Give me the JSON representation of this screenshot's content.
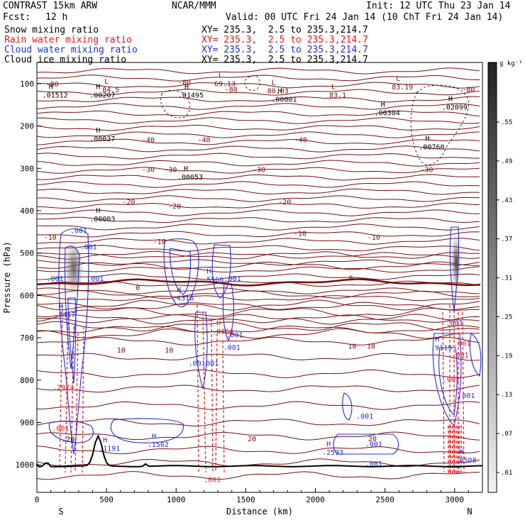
{
  "header": {
    "model": "CONTRAST 15km ARW",
    "org": "NCAR/MMM",
    "init": "Init: 12 UTC Thu 23 Jan 14",
    "fcst_label": "Fcst:",
    "fcst_value": "12 h",
    "valid": "Valid: 00 UTC Fri 24 Jan 14 (10 ChT Fri 24 Jan 14)"
  },
  "legend": [
    {
      "name": "Snow mixing ratio",
      "xy": "XY= 235.3,  2.5 to 235.3,214.7",
      "color": "#000000"
    },
    {
      "name": "Rain water mixing ratio",
      "xy": "XY= 235.3,  2.5 to 235.3,214.7",
      "color": "#e8161b"
    },
    {
      "name": "Cloud water mixing ratio",
      "xy": "XY= 235.3,  2.5 to 235.3,214.7",
      "color": "#1f2fd6"
    },
    {
      "name": "Cloud ice mixing ratio",
      "xy": "XY= 235.3,  2.5 to 235.3,214.7",
      "color": "#000000"
    }
  ],
  "chart_data": {
    "type": "contour-cross-section",
    "title": "CONTRAST 15km ARW cross section",
    "xlabel": "Distance (km)",
    "ylabel": "Pressure (hPa)",
    "xlim": [
      0,
      3200
    ],
    "ylim": [
      50,
      1065
    ],
    "x_ticks": [
      0,
      500,
      1000,
      1500,
      2000,
      2500,
      3000
    ],
    "y_ticks": [
      100,
      200,
      300,
      400,
      500,
      600,
      700,
      800,
      900,
      1000
    ],
    "end_labels": {
      "left": "S",
      "right": "N"
    },
    "colorbar": {
      "unit": "g kg⁻¹",
      "ticks": [
        ".01",
        ".07",
        ".13",
        ".19",
        ".25",
        ".31",
        ".37",
        ".43",
        ".49",
        ".55"
      ],
      "color_dark": "#222222",
      "color_light": "#f2f2f2"
    },
    "temperature_contours": [
      {
        "label": "-80",
        "x": 110,
        "p": 100
      },
      {
        "label": "-80",
        "x": 1060,
        "p": 96
      },
      {
        "label": "-80",
        "x": 1395,
        "p": 113
      },
      {
        "label": "-80",
        "x": 3100,
        "p": 113
      },
      {
        "label": "-40",
        "x": 800,
        "p": 232
      },
      {
        "label": "-40",
        "x": 1200,
        "p": 232
      },
      {
        "label": "-40",
        "x": 1895,
        "p": 232
      },
      {
        "label": "-30",
        "x": 800,
        "p": 302
      },
      {
        "label": "-30",
        "x": 960,
        "p": 302
      },
      {
        "label": "-30",
        "x": 1595,
        "p": 302
      },
      {
        "label": "-30",
        "x": 2800,
        "p": 302
      },
      {
        "label": "-20",
        "x": 660,
        "p": 378
      },
      {
        "label": "-20",
        "x": 990,
        "p": 388
      },
      {
        "label": "-20",
        "x": 1780,
        "p": 378
      },
      {
        "label": "-10",
        "x": 95,
        "p": 462
      },
      {
        "label": "-10",
        "x": 880,
        "p": 472
      },
      {
        "label": "-10",
        "x": 1890,
        "p": 453
      },
      {
        "label": "-10",
        "x": 2420,
        "p": 462
      },
      {
        "label": "0",
        "x": 725,
        "p": 581
      },
      {
        "label": "0",
        "x": 2255,
        "p": 558
      },
      {
        "label": "10",
        "x": 605,
        "p": 728
      },
      {
        "label": "10",
        "x": 950,
        "p": 728
      },
      {
        "label": "10",
        "x": 2265,
        "p": 719
      },
      {
        "label": "10",
        "x": 2400,
        "p": 719
      },
      {
        "label": "20",
        "x": 1545,
        "p": 938
      },
      {
        "label": "20",
        "x": 2410,
        "p": 938
      }
    ],
    "extrema": [
      {
        "type": "L",
        "x": 500,
        "value": "84.5",
        "p": 110
      },
      {
        "type": "H",
        "x": 100,
        "value": ".01512",
        "p": 123
      },
      {
        "type": "H",
        "x": 440,
        "value": ".00207",
        "p": 123
      },
      {
        "type": "L",
        "x": 1320,
        "value": "69.13",
        "p": 96
      },
      {
        "type": "H",
        "x": 1075,
        "value": ".01495",
        "p": 123
      },
      {
        "type": "L",
        "x": 1700,
        "value": "80.03",
        "p": 113
      },
      {
        "type": "H",
        "x": 1745,
        "value": ".00001",
        "p": 133
      },
      {
        "type": "L",
        "x": 2130,
        "value": "83.1",
        "p": 123
      },
      {
        "type": "L",
        "x": 2595,
        "value": "83.19",
        "p": 104
      },
      {
        "type": "H",
        "x": 2485,
        "value": ".00304",
        "p": 165
      },
      {
        "type": "H",
        "x": 2970,
        "value": ".02099",
        "p": 151
      },
      {
        "type": "H",
        "x": 440,
        "value": ".00037",
        "p": 226
      },
      {
        "type": "H",
        "x": 2805,
        "value": ".00760",
        "p": 245
      },
      {
        "type": "H",
        "x": 1070,
        "value": ".00053",
        "p": 316
      },
      {
        "type": "H",
        "x": 440,
        "value": ".00003",
        "p": 415
      },
      {
        "type": "H",
        "x": 1235,
        "value": ".5566",
        "p": 558
      },
      {
        "type": "H",
        "x": 1020,
        "value": ".4318",
        "p": 602
      },
      {
        "type": "H",
        "x": 170,
        "value": ".7417",
        "p": 641
      },
      {
        "type": "H",
        "x": 1305,
        "value": ".0154",
        "p": 681
      },
      {
        "type": "H",
        "x": 2875,
        "value": ".9119",
        "p": 719
      },
      {
        "type": "H",
        "x": 2095,
        "value": ".2593",
        "p": 966
      },
      {
        "type": "H",
        "x": 490,
        "value": ".1191",
        "p": 957
      },
      {
        "type": "H",
        "x": 840,
        "value": ".1562",
        "p": 948
      },
      {
        "type": "H",
        "x": 3050,
        "value": ".0508",
        "p": 985
      }
    ],
    "small_labels": [
      {
        "text": ".001",
        "x": 300,
        "p": 453,
        "series": "cloud"
      },
      {
        "text": ".001",
        "x": 370,
        "p": 491,
        "series": "cloud"
      },
      {
        "text": ".001",
        "x": 130,
        "p": 566,
        "series": "cloud"
      },
      {
        "text": ".001",
        "x": 420,
        "p": 566,
        "series": "cloud"
      },
      {
        "text": ".001",
        "x": 1405,
        "p": 566,
        "series": "cloud"
      },
      {
        "text": ".001",
        "x": 1420,
        "p": 699,
        "series": "cloud"
      },
      {
        "text": ".001",
        "x": 1400,
        "p": 728,
        "series": "cloud"
      },
      {
        "text": ".001",
        "x": 1150,
        "p": 766,
        "series": "cloud"
      },
      {
        "text": ".001",
        "x": 1245,
        "p": 766,
        "series": "cloud"
      },
      {
        "text": ".001",
        "x": 2355,
        "p": 891,
        "series": "cloud"
      },
      {
        "text": ".001",
        "x": 2420,
        "p": 957,
        "series": "cloud"
      },
      {
        "text": ".001",
        "x": 2420,
        "p": 1003,
        "series": "cloud"
      },
      {
        "text": ".001",
        "x": 3000,
        "p": 671,
        "series": "cloud"
      },
      {
        "text": ".001",
        "x": 3085,
        "p": 842,
        "series": "cloud"
      },
      {
        "text": ".001",
        "x": 3040,
        "p": 747,
        "series": "rain"
      },
      {
        "text": ".001",
        "x": 2975,
        "p": 804,
        "series": "rain"
      },
      {
        "text": ".001",
        "x": 3055,
        "p": 719,
        "series": "rain"
      },
      {
        "text": ".001",
        "x": 1260,
        "p": 1041,
        "series": "rain"
      },
      {
        "text": ".2974",
        "x": 190,
        "p": 823,
        "series": "rain"
      },
      {
        "text": ".001",
        "x": 170,
        "p": 919,
        "series": "rain"
      },
      {
        "text": ".20",
        "x": 225,
        "p": 945,
        "series": "snow"
      }
    ]
  }
}
